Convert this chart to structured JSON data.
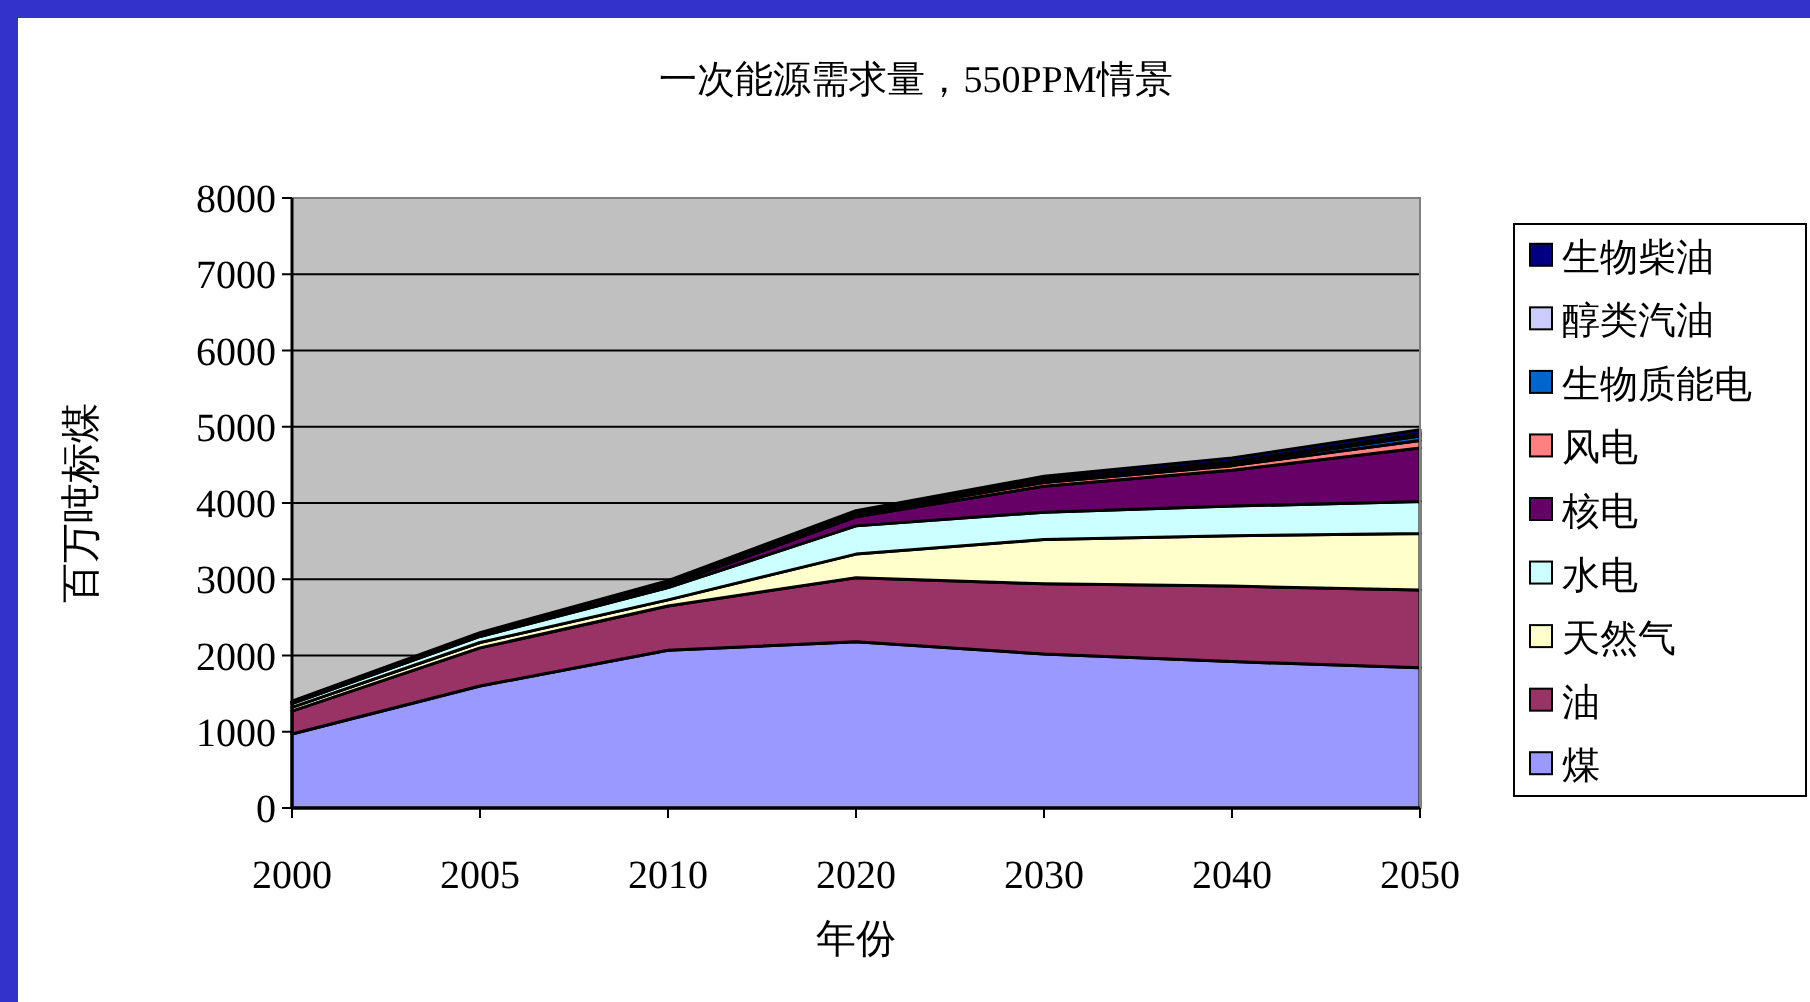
{
  "chart_data": {
    "type": "area",
    "title": "一次能源需求量，550PPM情景",
    "xlabel": "年份",
    "ylabel": "百万吨标煤",
    "categories": [
      "2000",
      "2005",
      "2010",
      "2020",
      "2030",
      "2040",
      "2050"
    ],
    "stacked": true,
    "ylim": [
      0,
      8000
    ],
    "yticks": [
      0,
      1000,
      2000,
      3000,
      4000,
      5000,
      6000,
      7000,
      8000
    ],
    "grid": "y",
    "legend": "right",
    "series": [
      {
        "name": "煤",
        "color": "#9999ff",
        "values": [
          970,
          1600,
          2070,
          2180,
          2020,
          1920,
          1840
        ]
      },
      {
        "name": "油",
        "color": "#993366",
        "values": [
          300,
          500,
          580,
          840,
          920,
          990,
          1020
        ]
      },
      {
        "name": "天然气",
        "color": "#ffffcc",
        "values": [
          50,
          70,
          80,
          310,
          580,
          660,
          740
        ]
      },
      {
        "name": "水电",
        "color": "#ccffff",
        "values": [
          50,
          80,
          160,
          370,
          360,
          390,
          420
        ]
      },
      {
        "name": "核电",
        "color": "#660066",
        "values": [
          20,
          20,
          30,
          120,
          340,
          470,
          700
        ]
      },
      {
        "name": "风电",
        "color": "#ff8080",
        "values": [
          0,
          10,
          10,
          30,
          50,
          60,
          100
        ]
      },
      {
        "name": "生物质能电",
        "color": "#0066cc",
        "values": [
          0,
          0,
          10,
          20,
          20,
          30,
          60
        ]
      },
      {
        "name": "醇类汽油",
        "color": "#ccccff",
        "values": [
          0,
          0,
          10,
          10,
          20,
          20,
          30
        ]
      },
      {
        "name": "生物柴油",
        "color": "#000080",
        "values": [
          10,
          20,
          30,
          20,
          40,
          50,
          50
        ]
      }
    ]
  }
}
